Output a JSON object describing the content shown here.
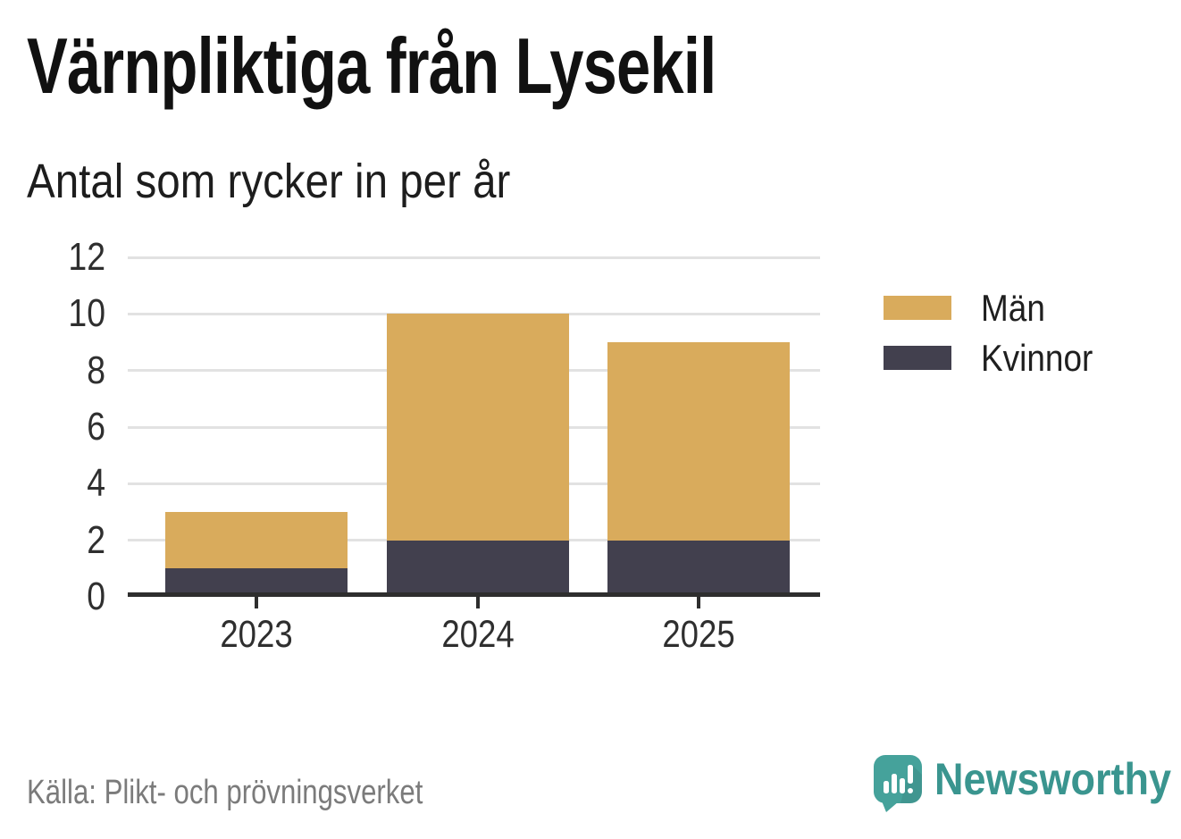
{
  "title": "Värnpliktiga från Lysekil",
  "subtitle": "Antal som rycker in per år",
  "source": "Källa: Plikt- och prövningsverket",
  "branding": {
    "logo_text": "Newsworthy",
    "logo_icon": "newsworthy-speech-bubble-bar-chart-icon",
    "logo_text_color": "#3A958F",
    "icon_color": "#45A29B"
  },
  "colors": {
    "background": "#FFFFFF",
    "title": "#111111",
    "subtitle": "#1D1D1D",
    "axis_labels": "#2F2F2F",
    "gridline": "#E2E2E2",
    "axis_line": "#2E2E2E",
    "source_text": "#7B7B7B",
    "men": "#D9AB5C",
    "women": "#42404E"
  },
  "chart_data": {
    "type": "bar",
    "stacked": true,
    "title": "Värnpliktiga från Lysekil",
    "subtitle": "Antal som rycker in per år",
    "categories": [
      "2023",
      "2024",
      "2025"
    ],
    "series": [
      {
        "name": "Män",
        "color": "#D9AB5C",
        "values": [
          2,
          8,
          7
        ]
      },
      {
        "name": "Kvinnor",
        "color": "#42404E",
        "values": [
          1,
          2,
          2
        ]
      }
    ],
    "stack_order_bottom_to_top": [
      "Kvinnor",
      "Män"
    ],
    "totals": [
      3,
      10,
      9
    ],
    "xlabel": "",
    "ylabel": "",
    "ylim": [
      0,
      12
    ],
    "yticks": [
      0,
      2,
      4,
      6,
      8,
      10,
      12
    ],
    "grid": true,
    "legend_position": "right-top",
    "legend_order": [
      "Män",
      "Kvinnor"
    ]
  }
}
